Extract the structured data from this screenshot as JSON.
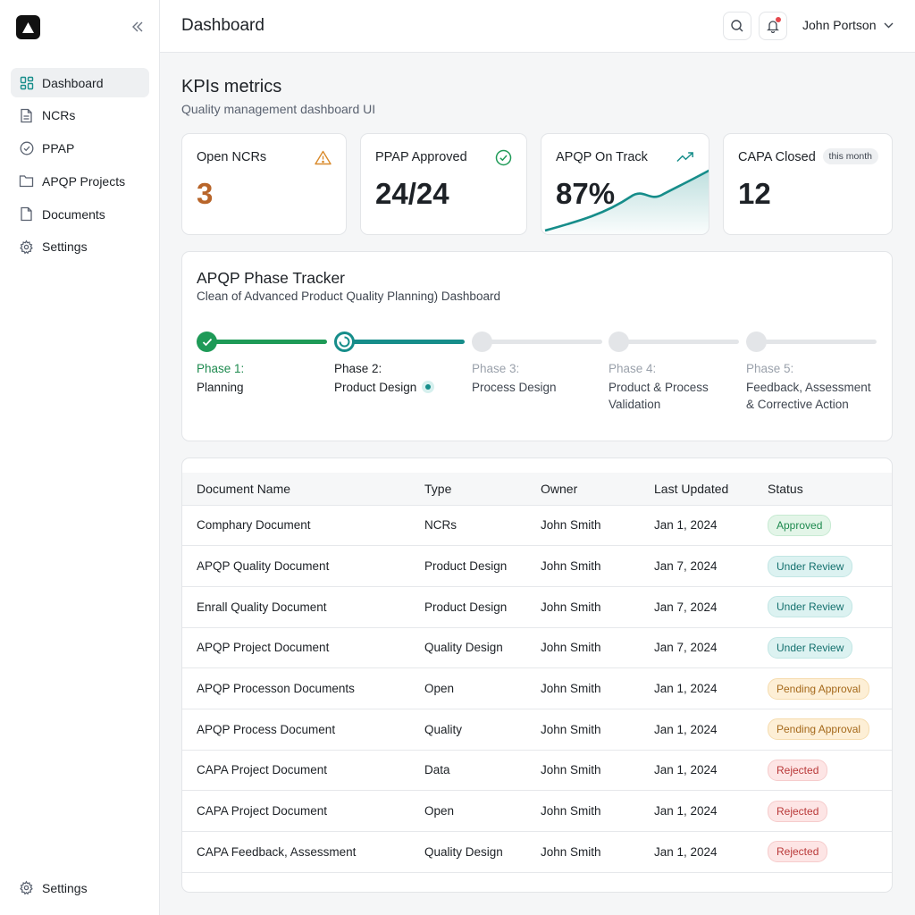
{
  "app": {
    "title": "Dashboard"
  },
  "sidebar": {
    "items": [
      {
        "label": "Dashboard",
        "icon": "grid-icon",
        "active": true
      },
      {
        "label": "NCRs",
        "icon": "file-icon"
      },
      {
        "label": "PPAP",
        "icon": "check-circle-icon"
      },
      {
        "label": "APQP Projects",
        "icon": "folder-icon"
      },
      {
        "label": "Documents",
        "icon": "document-icon"
      },
      {
        "label": "Settings",
        "icon": "gear-icon"
      }
    ],
    "bottom": {
      "label": "Settings",
      "icon": "gear-icon"
    }
  },
  "header": {
    "title": "Dashboard",
    "user": "John Portson"
  },
  "kpi": {
    "title": "KPIs metrics",
    "subtitle": "Quality management dashboard UI",
    "cards": [
      {
        "label": "Open NCRs",
        "value": "3",
        "icon": "warning-icon",
        "value_color": "#b8652a"
      },
      {
        "label": "PPAP Approved",
        "value": "24/24",
        "icon": "check-circle-icon"
      },
      {
        "label": "APQP On Track",
        "value": "87%",
        "icon": "trend-up-icon"
      },
      {
        "label": "CAPA Closed",
        "value": "12",
        "badge": "this month"
      }
    ]
  },
  "tracker": {
    "title": "APQP Phase Tracker",
    "subtitle": "Clean of Advanced Product Quality Planning) Dashboard",
    "phases": [
      {
        "num": "Phase 1:",
        "name": "Planning",
        "state": "done"
      },
      {
        "num": "Phase 2:",
        "name": "Product Design",
        "state": "current"
      },
      {
        "num": "Phase 3:",
        "name": "Process Design",
        "state": "upcoming"
      },
      {
        "num": "Phase 4:",
        "name_line1": "Product & Process",
        "name_line2": "Validation",
        "state": "upcoming"
      },
      {
        "num": "Phase 5:",
        "name_line1": "Feedback, Assessment",
        "name_line2": "& Corrective Action",
        "state": "upcoming"
      }
    ]
  },
  "table": {
    "columns": [
      "Document Name",
      "Type",
      "Owner",
      "Last Updated",
      "Status"
    ],
    "rows": [
      {
        "name": "Comphary Document",
        "type": "NCRs",
        "owner": "John Smith",
        "updated": "Jan 1, 2024",
        "status": "Approved"
      },
      {
        "name": "APQP Quality Document",
        "type": "Product Design",
        "owner": "John Smith",
        "updated": "Jan 7, 2024",
        "status": "Under Review"
      },
      {
        "name": "Enrall Quality Document",
        "type": "Product Design",
        "owner": "John Smith",
        "updated": "Jan 7, 2024",
        "status": "Under Review"
      },
      {
        "name": "APQP Project Document",
        "type": "Quality Design",
        "owner": "John Smith",
        "updated": "Jan 7, 2024",
        "status": "Under Review"
      },
      {
        "name": "APQP Processon Documents",
        "type": "Open",
        "owner": "John Smith",
        "updated": "Jan 1, 2024",
        "status": "Pending Approval"
      },
      {
        "name": "APQP Process Document",
        "type": "Quality",
        "owner": "John Smith",
        "updated": "Jan 1, 2024",
        "status": "Pending Approval"
      },
      {
        "name": "CAPA Project Document",
        "type": "Data",
        "owner": "John Smith",
        "updated": "Jan 1, 2024",
        "status": "Rejected"
      },
      {
        "name": "CAPA Project Document",
        "type": "Open",
        "owner": "John Smith",
        "updated": "Jan 1, 2024",
        "status": "Rejected"
      },
      {
        "name": "CAPA Feedback, Assessment",
        "type": "Quality Design",
        "owner": "John Smith",
        "updated": "Jan 1, 2024",
        "status": "Rejected"
      }
    ]
  },
  "colors": {
    "success": "#1e9a57",
    "teal": "#168d8a",
    "warning": "#d98a2b",
    "danger": "#e5484d"
  }
}
